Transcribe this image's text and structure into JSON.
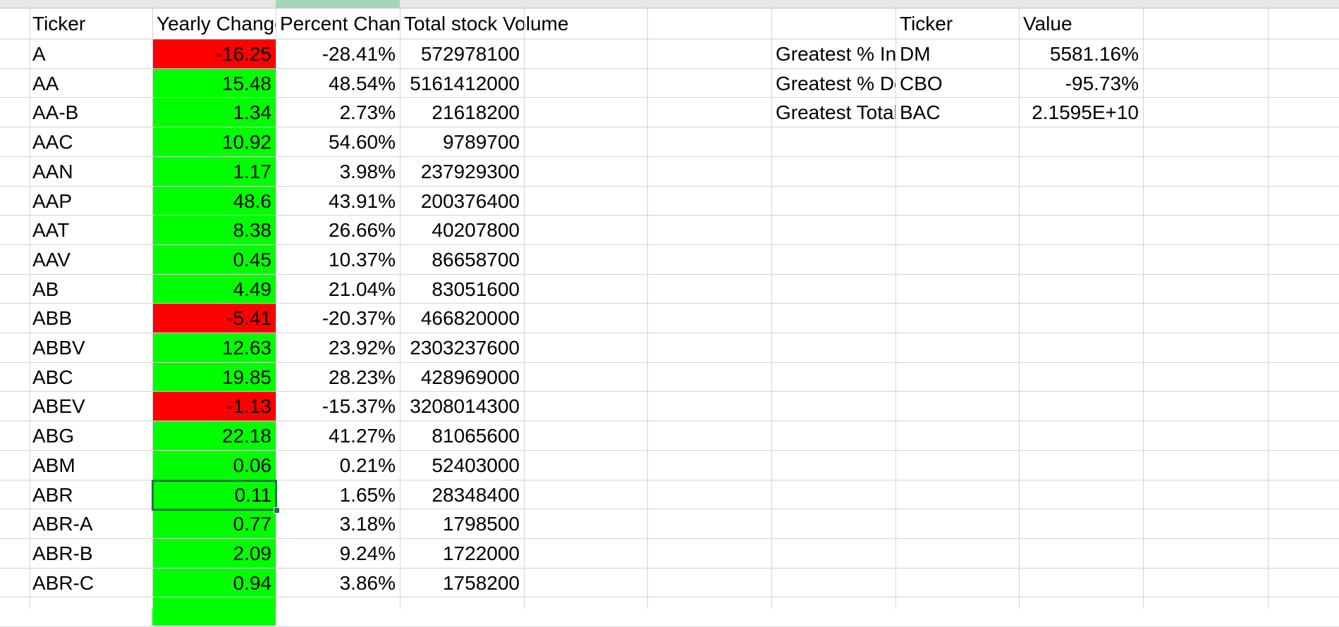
{
  "colors": {
    "negative_fill": "#ff0000",
    "positive_fill": "#00ff00",
    "gridline": "#d4d4d4",
    "selection": "#217346",
    "selected_header": "#a5d6b8"
  },
  "headers": {
    "ticker": "Ticker",
    "yearly_change": "Yearly Change",
    "percent_change": "Percent Change",
    "total_volume": "Total stock Volume",
    "summary_ticker": "Ticker",
    "summary_value": "Value"
  },
  "rows": [
    {
      "ticker": "A",
      "yearly_change": "-16.25",
      "percent_change": "-28.41%",
      "volume": "572978100",
      "positive": false
    },
    {
      "ticker": "AA",
      "yearly_change": "15.48",
      "percent_change": "48.54%",
      "volume": "5161412000",
      "positive": true
    },
    {
      "ticker": "AA-B",
      "yearly_change": "1.34",
      "percent_change": "2.73%",
      "volume": "21618200",
      "positive": true
    },
    {
      "ticker": "AAC",
      "yearly_change": "10.92",
      "percent_change": "54.60%",
      "volume": "9789700",
      "positive": true
    },
    {
      "ticker": "AAN",
      "yearly_change": "1.17",
      "percent_change": "3.98%",
      "volume": "237929300",
      "positive": true
    },
    {
      "ticker": "AAP",
      "yearly_change": "48.6",
      "percent_change": "43.91%",
      "volume": "200376400",
      "positive": true
    },
    {
      "ticker": "AAT",
      "yearly_change": "8.38",
      "percent_change": "26.66%",
      "volume": "40207800",
      "positive": true
    },
    {
      "ticker": "AAV",
      "yearly_change": "0.45",
      "percent_change": "10.37%",
      "volume": "86658700",
      "positive": true
    },
    {
      "ticker": "AB",
      "yearly_change": "4.49",
      "percent_change": "21.04%",
      "volume": "83051600",
      "positive": true
    },
    {
      "ticker": "ABB",
      "yearly_change": "-5.41",
      "percent_change": "-20.37%",
      "volume": "466820000",
      "positive": false
    },
    {
      "ticker": "ABBV",
      "yearly_change": "12.63",
      "percent_change": "23.92%",
      "volume": "2303237600",
      "positive": true
    },
    {
      "ticker": "ABC",
      "yearly_change": "19.85",
      "percent_change": "28.23%",
      "volume": "428969000",
      "positive": true
    },
    {
      "ticker": "ABEV",
      "yearly_change": "-1.13",
      "percent_change": "-15.37%",
      "volume": "3208014300",
      "positive": false
    },
    {
      "ticker": "ABG",
      "yearly_change": "22.18",
      "percent_change": "41.27%",
      "volume": "81065600",
      "positive": true
    },
    {
      "ticker": "ABM",
      "yearly_change": "0.06",
      "percent_change": "0.21%",
      "volume": "52403000",
      "positive": true
    },
    {
      "ticker": "ABR",
      "yearly_change": "0.11",
      "percent_change": "1.65%",
      "volume": "28348400",
      "positive": true
    },
    {
      "ticker": "ABR-A",
      "yearly_change": "0.77",
      "percent_change": "3.18%",
      "volume": "1798500",
      "positive": true
    },
    {
      "ticker": "ABR-B",
      "yearly_change": "2.09",
      "percent_change": "9.24%",
      "volume": "1722000",
      "positive": true
    },
    {
      "ticker": "ABR-C",
      "yearly_change": "0.94",
      "percent_change": "3.86%",
      "volume": "1758200",
      "positive": true
    }
  ],
  "summary": [
    {
      "label": "Greatest % Increase",
      "ticker": "DM",
      "value": "5581.16%"
    },
    {
      "label": "Greatest % Decrease",
      "ticker": "CBO",
      "value": "-95.73%"
    },
    {
      "label": "Greatest Total Volume",
      "ticker": "BAC",
      "value": "2.1595E+10"
    }
  ],
  "selected_row_index": 15
}
